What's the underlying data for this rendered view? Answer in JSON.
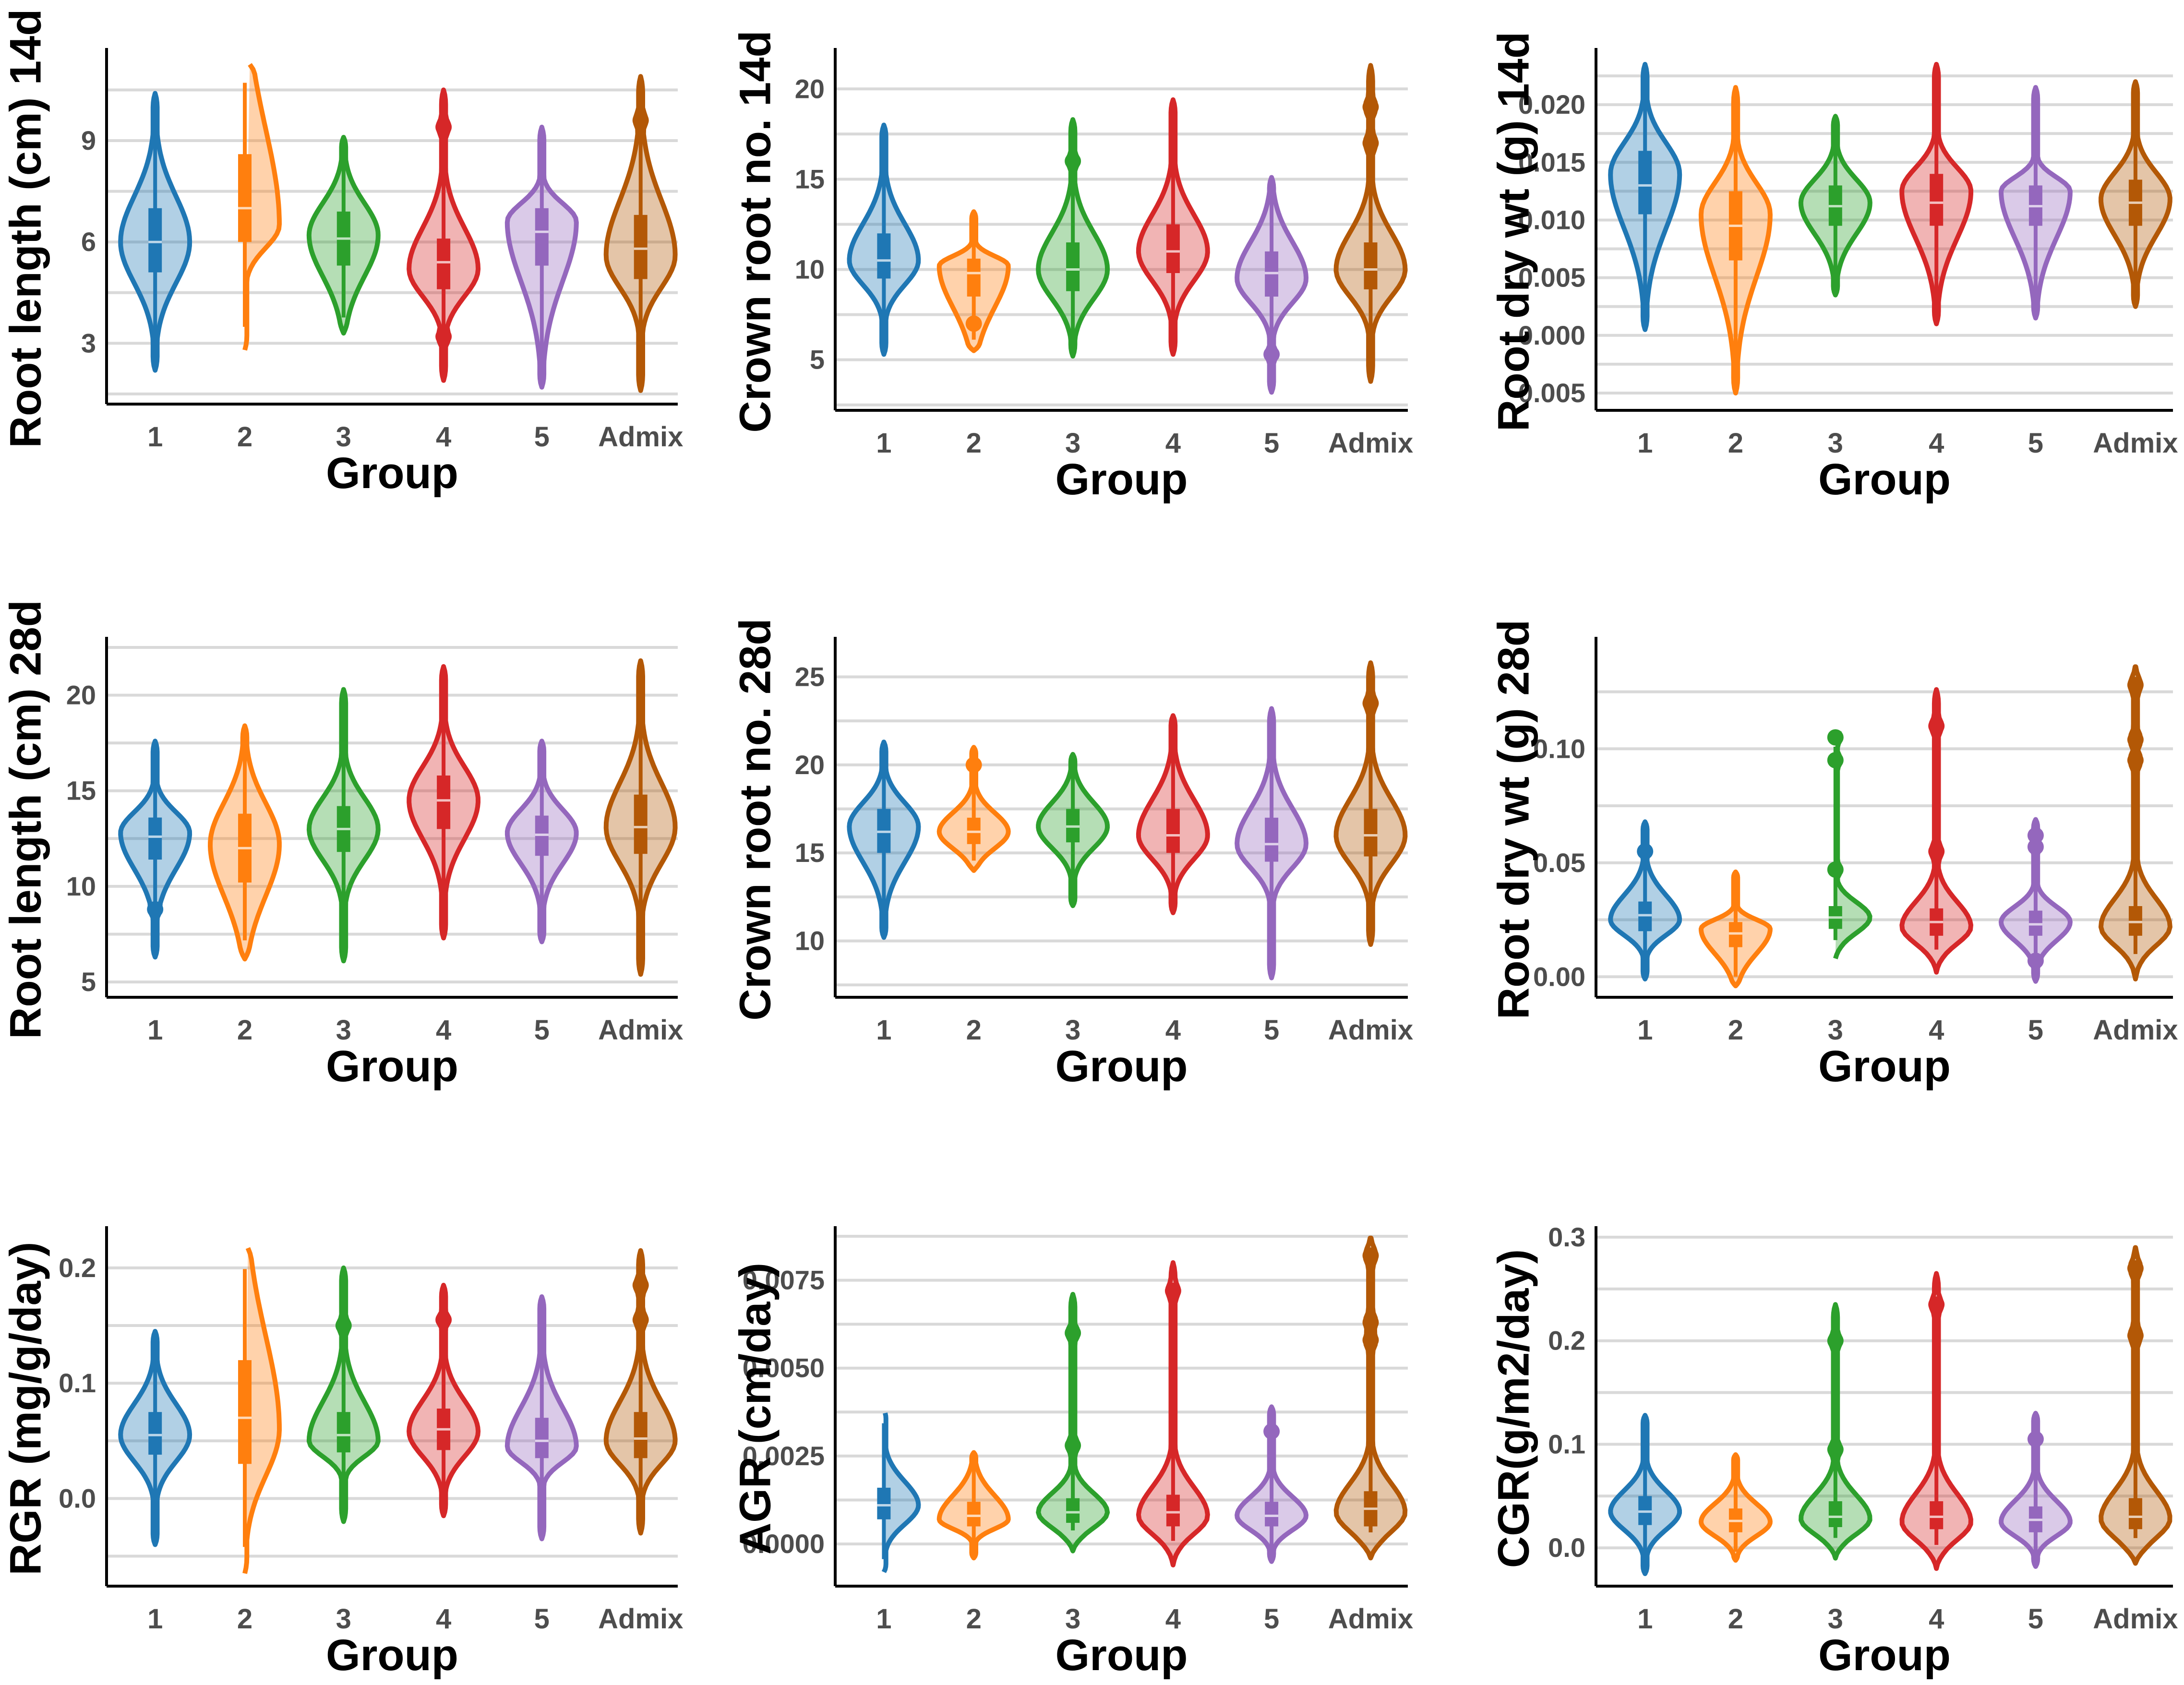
{
  "figure": {
    "panel_count": 9
  },
  "chart_data": [
    {
      "type": "violin",
      "ylabel": "Root length (cm) 14d",
      "xlabel": "Group",
      "categories": [
        "1",
        "2",
        "3",
        "4",
        "5",
        "Admix"
      ],
      "colors": [
        "#1f77b4",
        "#ff7f0e",
        "#2ca02c",
        "#d62728",
        "#9467bd",
        "#b35806"
      ],
      "ylim": [
        1.2,
        11.6
      ],
      "yticks": [
        3,
        6,
        9
      ],
      "ytick_labels": [
        "3",
        "6",
        "9"
      ],
      "series": [
        {
          "name": "1",
          "min": 2.2,
          "max": 10.4,
          "q1": 5.1,
          "median": 6.0,
          "q3": 7.0,
          "mode": 6.0,
          "outliers": []
        },
        {
          "name": "2",
          "min": 2.8,
          "max": 11.4,
          "q1": 6.0,
          "median": 7.0,
          "q3": 8.6,
          "mode": 6.5,
          "outliers": []
        },
        {
          "name": "3",
          "min": 3.3,
          "max": 9.1,
          "q1": 5.3,
          "median": 6.1,
          "q3": 6.9,
          "mode": 6.2,
          "outliers": []
        },
        {
          "name": "4",
          "min": 1.9,
          "max": 10.5,
          "q1": 4.6,
          "median": 5.4,
          "q3": 6.1,
          "mode": 5.2,
          "outliers": [
            3.2,
            9.4
          ]
        },
        {
          "name": "5",
          "min": 1.7,
          "max": 9.4,
          "q1": 5.3,
          "median": 6.3,
          "q3": 7.0,
          "mode": 6.6,
          "outliers": []
        },
        {
          "name": "Admix",
          "min": 1.6,
          "max": 10.9,
          "q1": 4.9,
          "median": 5.8,
          "q3": 6.8,
          "mode": 5.6,
          "outliers": [
            9.6
          ]
        }
      ]
    },
    {
      "type": "violin",
      "ylabel": "Crown root no. 14d",
      "xlabel": "Group",
      "categories": [
        "1",
        "2",
        "3",
        "4",
        "5",
        "Admix"
      ],
      "colors": [
        "#1f77b4",
        "#ff7f0e",
        "#2ca02c",
        "#d62728",
        "#9467bd",
        "#b35806"
      ],
      "ylim": [
        2.2,
        22
      ],
      "yticks": [
        5,
        10,
        15,
        20
      ],
      "ytick_labels": [
        "5",
        "10",
        "15",
        "20"
      ],
      "series": [
        {
          "name": "1",
          "min": 5.3,
          "max": 18.0,
          "q1": 9.5,
          "median": 10.5,
          "q3": 12.0,
          "mode": 10.5,
          "outliers": []
        },
        {
          "name": "2",
          "min": 5.5,
          "max": 13.2,
          "q1": 8.5,
          "median": 9.8,
          "q3": 10.6,
          "mode": 10.2,
          "outliers": [
            7.0
          ]
        },
        {
          "name": "3",
          "min": 5.2,
          "max": 18.3,
          "q1": 8.8,
          "median": 10.0,
          "q3": 11.5,
          "mode": 10.0,
          "outliers": [
            16.0
          ]
        },
        {
          "name": "4",
          "min": 5.3,
          "max": 19.4,
          "q1": 9.8,
          "median": 11.0,
          "q3": 12.5,
          "mode": 11.0,
          "outliers": []
        },
        {
          "name": "5",
          "min": 3.2,
          "max": 15.1,
          "q1": 8.5,
          "median": 9.8,
          "q3": 11.0,
          "mode": 9.5,
          "outliers": [
            5.3
          ]
        },
        {
          "name": "Admix",
          "min": 3.8,
          "max": 21.3,
          "q1": 8.9,
          "median": 10.0,
          "q3": 11.5,
          "mode": 10.0,
          "outliers": [
            17.0,
            19.0
          ]
        }
      ]
    },
    {
      "type": "violin",
      "ylabel": "Root dry wt (g) 14d",
      "xlabel": "Group",
      "categories": [
        "1",
        "2",
        "3",
        "4",
        "5",
        "Admix"
      ],
      "colors": [
        "#1f77b4",
        "#ff7f0e",
        "#2ca02c",
        "#d62728",
        "#9467bd",
        "#b35806"
      ],
      "ylim": [
        -0.0065,
        0.0245
      ],
      "yticks": [
        -0.005,
        0.0,
        0.005,
        0.01,
        0.015,
        0.02
      ],
      "ytick_labels": [
        "-0.005",
        "0.000",
        "0.005",
        "0.010",
        "0.015",
        "0.020"
      ],
      "series": [
        {
          "name": "1",
          "min": 0.0005,
          "max": 0.0235,
          "q1": 0.0105,
          "median": 0.013,
          "q3": 0.016,
          "mode": 0.014,
          "outliers": []
        },
        {
          "name": "2",
          "min": -0.005,
          "max": 0.0215,
          "q1": 0.0065,
          "median": 0.0095,
          "q3": 0.0125,
          "mode": 0.0105,
          "outliers": []
        },
        {
          "name": "3",
          "min": 0.0035,
          "max": 0.019,
          "q1": 0.0095,
          "median": 0.0112,
          "q3": 0.013,
          "mode": 0.0115,
          "outliers": []
        },
        {
          "name": "4",
          "min": 0.001,
          "max": 0.0235,
          "q1": 0.0095,
          "median": 0.0115,
          "q3": 0.014,
          "mode": 0.0125,
          "outliers": []
        },
        {
          "name": "5",
          "min": 0.0015,
          "max": 0.0215,
          "q1": 0.0095,
          "median": 0.0112,
          "q3": 0.013,
          "mode": 0.0125,
          "outliers": []
        },
        {
          "name": "Admix",
          "min": 0.0025,
          "max": 0.022,
          "q1": 0.0095,
          "median": 0.0115,
          "q3": 0.0135,
          "mode": 0.0118,
          "outliers": []
        }
      ]
    },
    {
      "type": "violin",
      "ylabel": "Root length (cm) 28d",
      "xlabel": "Group",
      "categories": [
        "1",
        "2",
        "3",
        "4",
        "5",
        "Admix"
      ],
      "colors": [
        "#1f77b4",
        "#ff7f0e",
        "#2ca02c",
        "#d62728",
        "#9467bd",
        "#b35806"
      ],
      "ylim": [
        4.2,
        22.8
      ],
      "yticks": [
        5,
        10,
        15,
        20
      ],
      "ytick_labels": [
        "5",
        "10",
        "15",
        "20"
      ],
      "series": [
        {
          "name": "1",
          "min": 6.3,
          "max": 17.6,
          "q1": 11.4,
          "median": 12.6,
          "q3": 13.6,
          "mode": 12.8,
          "outliers": [
            8.8
          ]
        },
        {
          "name": "2",
          "min": 6.2,
          "max": 18.4,
          "q1": 10.2,
          "median": 12.0,
          "q3": 13.8,
          "mode": 12.2,
          "outliers": []
        },
        {
          "name": "3",
          "min": 6.1,
          "max": 20.3,
          "q1": 11.8,
          "median": 13.0,
          "q3": 14.2,
          "mode": 13.0,
          "outliers": []
        },
        {
          "name": "4",
          "min": 7.3,
          "max": 21.5,
          "q1": 13.0,
          "median": 14.5,
          "q3": 15.8,
          "mode": 14.5,
          "outliers": []
        },
        {
          "name": "5",
          "min": 7.1,
          "max": 17.6,
          "q1": 11.6,
          "median": 12.7,
          "q3": 13.7,
          "mode": 12.8,
          "outliers": []
        },
        {
          "name": "Admix",
          "min": 5.4,
          "max": 21.8,
          "q1": 11.7,
          "median": 13.1,
          "q3": 14.8,
          "mode": 13.1,
          "outliers": []
        }
      ]
    },
    {
      "type": "violin",
      "ylabel": "Crown root no. 28d",
      "xlabel": "Group",
      "categories": [
        "1",
        "2",
        "3",
        "4",
        "5",
        "Admix"
      ],
      "colors": [
        "#1f77b4",
        "#ff7f0e",
        "#2ca02c",
        "#d62728",
        "#9467bd",
        "#b35806"
      ],
      "ylim": [
        6.8,
        27
      ],
      "yticks": [
        10,
        15,
        20,
        25
      ],
      "ytick_labels": [
        "10",
        "15",
        "20",
        "25"
      ],
      "series": [
        {
          "name": "1",
          "min": 10.2,
          "max": 21.3,
          "q1": 15.0,
          "median": 16.2,
          "q3": 17.5,
          "mode": 16.5,
          "outliers": []
        },
        {
          "name": "2",
          "min": 14.0,
          "max": 21.0,
          "q1": 15.5,
          "median": 16.2,
          "q3": 17.0,
          "mode": 16.2,
          "outliers": [
            20.0
          ]
        },
        {
          "name": "3",
          "min": 12.0,
          "max": 20.6,
          "q1": 15.6,
          "median": 16.5,
          "q3": 17.5,
          "mode": 16.5,
          "outliers": []
        },
        {
          "name": "4",
          "min": 11.6,
          "max": 22.8,
          "q1": 15.0,
          "median": 16.0,
          "q3": 17.5,
          "mode": 16.0,
          "outliers": []
        },
        {
          "name": "5",
          "min": 7.9,
          "max": 23.2,
          "q1": 14.5,
          "median": 15.5,
          "q3": 17.0,
          "mode": 15.5,
          "outliers": []
        },
        {
          "name": "Admix",
          "min": 9.8,
          "max": 25.8,
          "q1": 14.8,
          "median": 16.0,
          "q3": 17.5,
          "mode": 16.0,
          "outliers": [
            23.5
          ]
        }
      ]
    },
    {
      "type": "violin",
      "ylabel": "Root dry wt (g) 28d",
      "xlabel": "Group",
      "categories": [
        "1",
        "2",
        "3",
        "4",
        "5",
        "Admix"
      ],
      "colors": [
        "#1f77b4",
        "#ff7f0e",
        "#2ca02c",
        "#d62728",
        "#9467bd",
        "#b35806"
      ],
      "ylim": [
        -0.009,
        0.147
      ],
      "yticks": [
        0.0,
        0.05,
        0.1
      ],
      "ytick_labels": [
        "0.00",
        "0.05",
        "0.10"
      ],
      "series": [
        {
          "name": "1",
          "min": -0.001,
          "max": 0.068,
          "q1": 0.02,
          "median": 0.027,
          "q3": 0.033,
          "mode": 0.025,
          "outliers": [
            0.055
          ]
        },
        {
          "name": "2",
          "min": -0.004,
          "max": 0.046,
          "q1": 0.013,
          "median": 0.019,
          "q3": 0.024,
          "mode": 0.021,
          "outliers": []
        },
        {
          "name": "3",
          "min": 0.008,
          "max": 0.109,
          "q1": 0.021,
          "median": 0.026,
          "q3": 0.031,
          "mode": 0.026,
          "outliers": [
            0.047,
            0.095,
            0.105
          ]
        },
        {
          "name": "4",
          "min": 0.002,
          "max": 0.126,
          "q1": 0.018,
          "median": 0.024,
          "q3": 0.03,
          "mode": 0.022,
          "outliers": [
            0.055,
            0.11
          ]
        },
        {
          "name": "5",
          "min": -0.002,
          "max": 0.069,
          "q1": 0.018,
          "median": 0.023,
          "q3": 0.029,
          "mode": 0.024,
          "outliers": [
            0.007,
            0.057,
            0.062
          ]
        },
        {
          "name": "Admix",
          "min": -0.001,
          "max": 0.136,
          "q1": 0.018,
          "median": 0.024,
          "q3": 0.031,
          "mode": 0.022,
          "outliers": [
            0.095,
            0.104,
            0.128
          ]
        }
      ]
    },
    {
      "type": "violin",
      "ylabel": "RGR (mg/g/day)",
      "xlabel": "Group",
      "categories": [
        "1",
        "2",
        "3",
        "4",
        "5",
        "Admix"
      ],
      "colors": [
        "#1f77b4",
        "#ff7f0e",
        "#2ca02c",
        "#d62728",
        "#9467bd",
        "#b35806"
      ],
      "ylim": [
        -0.076,
        0.232
      ],
      "yticks": [
        0.0,
        0.1,
        0.2
      ],
      "ytick_labels": [
        "0.0",
        "0.1",
        "0.2"
      ],
      "series": [
        {
          "name": "1",
          "min": -0.04,
          "max": 0.145,
          "q1": 0.038,
          "median": 0.055,
          "q3": 0.075,
          "mode": 0.055,
          "outliers": []
        },
        {
          "name": "2",
          "min": -0.065,
          "max": 0.222,
          "q1": 0.03,
          "median": 0.07,
          "q3": 0.12,
          "mode": 0.06,
          "outliers": []
        },
        {
          "name": "3",
          "min": -0.02,
          "max": 0.2,
          "q1": 0.04,
          "median": 0.055,
          "q3": 0.075,
          "mode": 0.05,
          "outliers": [
            0.15
          ]
        },
        {
          "name": "4",
          "min": -0.015,
          "max": 0.185,
          "q1": 0.042,
          "median": 0.06,
          "q3": 0.078,
          "mode": 0.058,
          "outliers": [
            0.155
          ]
        },
        {
          "name": "5",
          "min": -0.035,
          "max": 0.175,
          "q1": 0.035,
          "median": 0.05,
          "q3": 0.07,
          "mode": 0.045,
          "outliers": []
        },
        {
          "name": "Admix",
          "min": -0.03,
          "max": 0.215,
          "q1": 0.035,
          "median": 0.052,
          "q3": 0.075,
          "mode": 0.05,
          "outliers": [
            0.155,
            0.185
          ]
        }
      ]
    },
    {
      "type": "violin",
      "ylabel": "AGR (cm/day)",
      "xlabel": "Group",
      "categories": [
        "1",
        "2",
        "3",
        "4",
        "5",
        "Admix"
      ],
      "colors": [
        "#1f77b4",
        "#ff7f0e",
        "#2ca02c",
        "#d62728",
        "#9467bd",
        "#b35806"
      ],
      "ylim": [
        -0.0012,
        0.0089
      ],
      "yticks": [
        0.0,
        0.0025,
        0.005,
        0.0075
      ],
      "ytick_labels": [
        "0.0000",
        "0.0025",
        "0.0050",
        "0.0075"
      ],
      "series": [
        {
          "name": "1",
          "min": -0.0008,
          "max": 0.0038,
          "q1": 0.0007,
          "median": 0.0011,
          "q3": 0.0016,
          "mode": 0.0011,
          "outliers": []
        },
        {
          "name": "2",
          "min": -0.0004,
          "max": 0.0026,
          "q1": 0.0005,
          "median": 0.0008,
          "q3": 0.0012,
          "mode": 0.0007,
          "outliers": []
        },
        {
          "name": "3",
          "min": -0.0002,
          "max": 0.0071,
          "q1": 0.0006,
          "median": 0.0009,
          "q3": 0.0013,
          "mode": 0.0009,
          "outliers": [
            0.0028,
            0.006
          ]
        },
        {
          "name": "4",
          "min": -0.0006,
          "max": 0.008,
          "q1": 0.0005,
          "median": 0.0009,
          "q3": 0.0014,
          "mode": 0.0008,
          "outliers": [
            0.0072
          ]
        },
        {
          "name": "5",
          "min": -0.0005,
          "max": 0.0039,
          "q1": 0.0005,
          "median": 0.0008,
          "q3": 0.0012,
          "mode": 0.0008,
          "outliers": [
            0.0032
          ]
        },
        {
          "name": "Admix",
          "min": -0.0004,
          "max": 0.0087,
          "q1": 0.0005,
          "median": 0.001,
          "q3": 0.0015,
          "mode": 0.0009,
          "outliers": [
            0.0058,
            0.0063,
            0.0082
          ]
        }
      ]
    },
    {
      "type": "violin",
      "ylabel": "CGR(g/m2/day)",
      "xlabel": "Group",
      "categories": [
        "1",
        "2",
        "3",
        "4",
        "5",
        "Admix"
      ],
      "colors": [
        "#1f77b4",
        "#ff7f0e",
        "#2ca02c",
        "#d62728",
        "#9467bd",
        "#b35806"
      ],
      "ylim": [
        -0.037,
        0.306
      ],
      "yticks": [
        0.0,
        0.1,
        0.2,
        0.3
      ],
      "ytick_labels": [
        "0.0",
        "0.1",
        "0.2",
        "0.3"
      ],
      "series": [
        {
          "name": "1",
          "min": -0.025,
          "max": 0.128,
          "q1": 0.022,
          "median": 0.035,
          "q3": 0.05,
          "mode": 0.035,
          "outliers": []
        },
        {
          "name": "2",
          "min": -0.012,
          "max": 0.09,
          "q1": 0.015,
          "median": 0.026,
          "q3": 0.038,
          "mode": 0.025,
          "outliers": []
        },
        {
          "name": "3",
          "min": -0.01,
          "max": 0.235,
          "q1": 0.02,
          "median": 0.03,
          "q3": 0.045,
          "mode": 0.028,
          "outliers": [
            0.095,
            0.2
          ]
        },
        {
          "name": "4",
          "min": -0.02,
          "max": 0.265,
          "q1": 0.018,
          "median": 0.03,
          "q3": 0.045,
          "mode": 0.025,
          "outliers": [
            0.235
          ]
        },
        {
          "name": "5",
          "min": -0.018,
          "max": 0.13,
          "q1": 0.015,
          "median": 0.027,
          "q3": 0.04,
          "mode": 0.025,
          "outliers": [
            0.105
          ]
        },
        {
          "name": "Admix",
          "min": -0.015,
          "max": 0.29,
          "q1": 0.018,
          "median": 0.03,
          "q3": 0.048,
          "mode": 0.028,
          "outliers": [
            0.205,
            0.27
          ]
        }
      ]
    }
  ]
}
